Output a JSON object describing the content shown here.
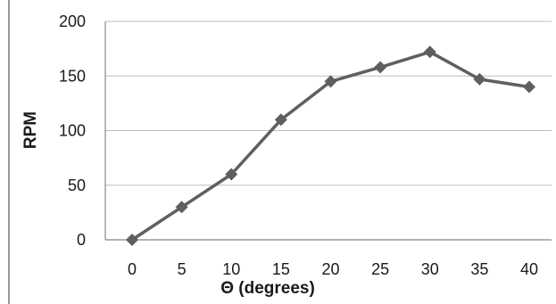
{
  "chart_data": {
    "type": "line",
    "title": "",
    "xlabel": "Θ (degrees)",
    "ylabel": "RPM",
    "x": [
      0,
      5,
      10,
      15,
      20,
      25,
      30,
      35,
      40
    ],
    "x_tick_labels": [
      "0",
      "5",
      "10",
      "15",
      "20",
      "25",
      "30",
      "35",
      "40"
    ],
    "y_tick_labels": [
      "0",
      "50",
      "100",
      "150",
      "200"
    ],
    "ylim": [
      0,
      200
    ],
    "y_ticks": [
      0,
      50,
      100,
      150,
      200
    ],
    "grid": true,
    "legend": "none",
    "series": [
      {
        "values": [
          0,
          30,
          60,
          110,
          145,
          158,
          172,
          147,
          140
        ]
      }
    ],
    "line_color": "#5f5f5f",
    "marker": "diamond",
    "grid_color": "#bdbdbd",
    "axis_color": "#888888"
  }
}
